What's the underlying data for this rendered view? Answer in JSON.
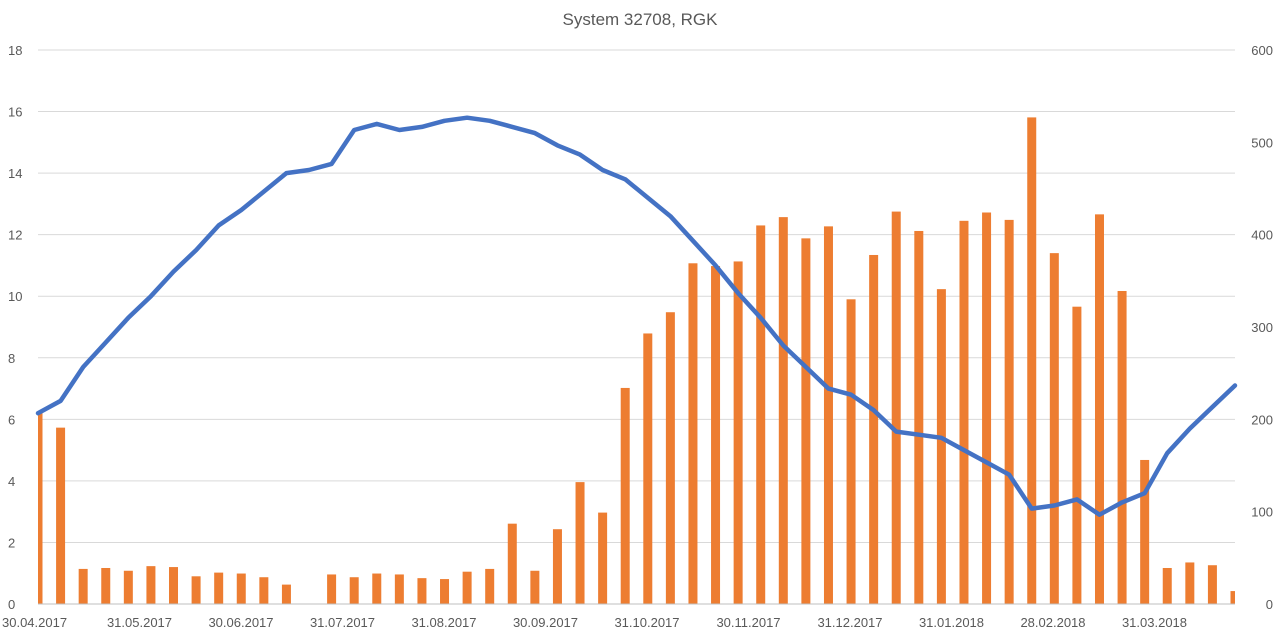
{
  "chart_data": {
    "type": "bar+line",
    "title": "System 32708, RGK",
    "xlabel": "",
    "ylabel_left": "",
    "ylabel_right": "",
    "left_axis": {
      "min": 0,
      "max": 18,
      "ticks": [
        0,
        2,
        4,
        6,
        8,
        10,
        12,
        14,
        16,
        18
      ]
    },
    "right_axis": {
      "min": 0,
      "max": 600,
      "ticks": [
        0,
        100,
        200,
        300,
        400,
        500,
        600
      ]
    },
    "x_tick_labels": [
      "30.04.2017",
      "31.05.2017",
      "30.06.2017",
      "31.07.2017",
      "31.08.2017",
      "30.09.2017",
      "31.10.2017",
      "30.11.2017",
      "31.12.2017",
      "31.01.2018",
      "28.02.2018",
      "31.03.2018"
    ],
    "grid": true,
    "legend": "none",
    "colors": {
      "bars": "#ED7D31",
      "line": "#4472C4"
    },
    "bar_series": {
      "axis": "right",
      "values": [
        207,
        191,
        38,
        39,
        36,
        41,
        40,
        30,
        34,
        33,
        29,
        21,
        null,
        32,
        29,
        33,
        32,
        28,
        27,
        35,
        38,
        87,
        36,
        81,
        132,
        99,
        234,
        293,
        316,
        369,
        366,
        371,
        410,
        419,
        396,
        409,
        330,
        378,
        425,
        404,
        341,
        415,
        424,
        416,
        527,
        380,
        322,
        422,
        339,
        156,
        39,
        45,
        42,
        14
      ]
    },
    "line_series": {
      "axis": "left",
      "values": [
        6.2,
        6.6,
        7.7,
        8.5,
        9.3,
        10.0,
        10.8,
        11.5,
        12.3,
        12.8,
        13.4,
        14.0,
        14.1,
        14.3,
        15.4,
        15.6,
        15.4,
        15.5,
        15.7,
        15.8,
        15.7,
        15.5,
        15.3,
        14.9,
        14.6,
        14.1,
        13.8,
        13.2,
        12.6,
        11.8,
        11.0,
        10.1,
        9.3,
        8.4,
        7.7,
        7.0,
        6.8,
        6.3,
        5.6,
        5.5,
        5.4,
        5.0,
        4.6,
        4.2,
        3.1,
        3.2,
        3.4,
        2.9,
        3.3,
        3.6,
        4.9,
        5.7,
        6.4,
        7.1
      ]
    }
  }
}
